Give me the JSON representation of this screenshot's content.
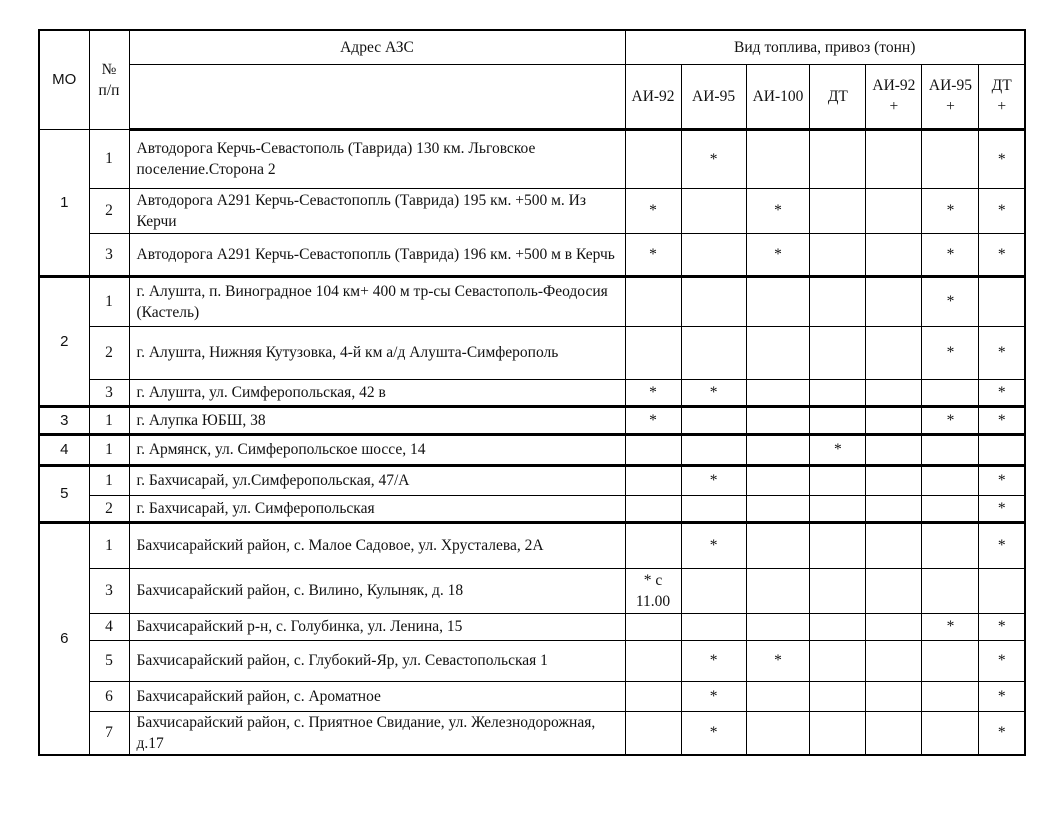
{
  "header": {
    "mo": "МО",
    "num": "№ п/п",
    "address": "Адрес АЗС",
    "fuel_group": "Вид топлива, привоз (тонн)",
    "fuel_types": [
      "АИ-92",
      "АИ-95",
      "АИ-100",
      "ДТ",
      "АИ-92 +",
      "АИ-95 +",
      "ДТ +"
    ]
  },
  "groups": [
    {
      "mo": "1",
      "rows": [
        {
          "num": "1",
          "address": "Автодорога  Керчь-Севастополь (Таврида) 130 км. Льговское поселение.Сторона 2",
          "fuel": [
            "",
            "*",
            "",
            "",
            "",
            "",
            "*"
          ]
        },
        {
          "num": "2",
          "address": "Автодорога А291 Керчь-Севастопопль (Таврида) 195 км. +500 м. Из Керчи",
          "fuel": [
            "*",
            "",
            "*",
            "",
            "",
            "*",
            "*"
          ]
        },
        {
          "num": "3",
          "address": "Автодорога А291 Керчь-Севастопопль (Таврида) 196 км. +500 м в Керчь",
          "fuel": [
            "*",
            "",
            "*",
            "",
            "",
            "*",
            "*"
          ]
        }
      ]
    },
    {
      "mo": "2",
      "rows": [
        {
          "num": "1",
          "address": "г. Алушта, п. Виноградное 104 км+ 400 м тр-сы Севастополь-Феодосия (Кастель)",
          "fuel": [
            "",
            "",
            "",
            "",
            "",
            "*",
            ""
          ]
        },
        {
          "num": "2",
          "address": "г. Алушта, Нижняя Кутузовка, 4-й км а/д Алушта-Симферополь",
          "fuel": [
            "",
            "",
            "",
            "",
            "",
            "*",
            "*"
          ]
        },
        {
          "num": "3",
          "address": "г. Алушта, ул. Симферопольская, 42 в",
          "fuel": [
            "*",
            "*",
            "",
            "",
            "",
            "",
            "*"
          ]
        }
      ]
    },
    {
      "mo": "3",
      "rows": [
        {
          "num": "1",
          "address": "г. Алупка  ЮБШ, 38",
          "fuel": [
            "*",
            "",
            "",
            "",
            "",
            "*",
            "*"
          ]
        }
      ]
    },
    {
      "mo": "4",
      "rows": [
        {
          "num": "1",
          "address": "г. Армянск, ул. Симферопольское шоссе, 14",
          "fuel": [
            "",
            "",
            "",
            "*",
            "",
            "",
            ""
          ]
        }
      ]
    },
    {
      "mo": "5",
      "rows": [
        {
          "num": "1",
          "address": "г. Бахчисарай, ул.Симферопольская, 47/А",
          "fuel": [
            "",
            "*",
            "",
            "",
            "",
            "",
            "*"
          ]
        },
        {
          "num": "2",
          "address": "г. Бахчисарай, ул. Симферопольская",
          "fuel": [
            "",
            "",
            "",
            "",
            "",
            "",
            "*"
          ]
        }
      ]
    },
    {
      "mo": "6",
      "rows": [
        {
          "num": "1",
          "address": "Бахчисарайский район, с. Малое Садовое, ул. Хрусталева, 2А",
          "fuel": [
            "",
            "*",
            "",
            "",
            "",
            "",
            "*"
          ]
        },
        {
          "num": "3",
          "address": "Бахчисарайский район, с. Вилино, Кулыняк, д. 18",
          "fuel": [
            "* с 11.00",
            "",
            "",
            "",
            "",
            "",
            ""
          ]
        },
        {
          "num": "4",
          "address": "Бахчисарайский р-н, с. Голубинка, ул. Ленина, 15",
          "fuel": [
            "",
            "",
            "",
            "",
            "",
            "*",
            "*"
          ]
        },
        {
          "num": "5",
          "address": "Бахчисарайский район, с. Глубокий-Яр, ул. Севастопольская 1",
          "fuel": [
            "",
            "*",
            "*",
            "",
            "",
            "",
            "*"
          ]
        },
        {
          "num": "6",
          "address": "Бахчисарайский район, с. Ароматное",
          "fuel": [
            "",
            "*",
            "",
            "",
            "",
            "",
            "*"
          ]
        },
        {
          "num": "7",
          "address": "Бахчисарайский район, с. Приятное Свидание, ул. Железнодорожная, д.17",
          "fuel": [
            "",
            "*",
            "",
            "",
            "",
            "",
            "*"
          ]
        }
      ]
    }
  ]
}
